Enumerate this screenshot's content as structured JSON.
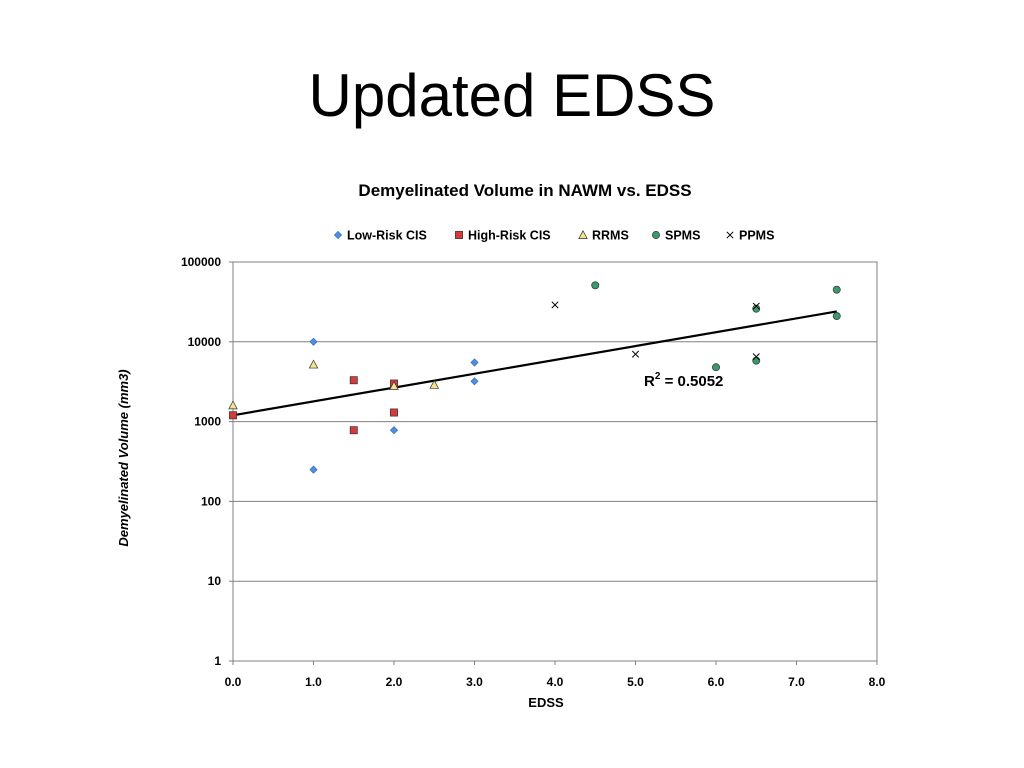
{
  "slide": {
    "title": "Updated EDSS"
  },
  "chart_data": {
    "type": "scatter",
    "title": "Demyelinated Volume in NAWM vs. EDSS",
    "xlabel": "EDSS",
    "ylabel": "Demyelinated Volume (mm3)",
    "xlim": [
      0,
      8
    ],
    "ylim": [
      1,
      100000
    ],
    "yscale": "log",
    "grid": "horizontal",
    "legend_position": "top",
    "x_ticks": [
      "0.0",
      "1.0",
      "2.0",
      "3.0",
      "4.0",
      "5.0",
      "6.0",
      "7.0",
      "8.0"
    ],
    "y_ticks": [
      "1",
      "10",
      "100",
      "1000",
      "10000",
      "100000"
    ],
    "series": [
      {
        "name": "Low-Risk CIS",
        "marker": "diamond",
        "color": "#4f8fe0",
        "points": [
          [
            1.0,
            250
          ],
          [
            1.0,
            10000
          ],
          [
            2.0,
            780
          ],
          [
            3.0,
            5500
          ],
          [
            3.0,
            3200
          ]
        ]
      },
      {
        "name": "High-Risk CIS",
        "marker": "square",
        "color": "#d63a3a",
        "points": [
          [
            0.0,
            1200
          ],
          [
            1.5,
            3300
          ],
          [
            1.5,
            780
          ],
          [
            2.0,
            3000
          ],
          [
            2.0,
            1300
          ]
        ]
      },
      {
        "name": "RRMS",
        "marker": "triangle",
        "color": "#f3e38a",
        "points": [
          [
            0.0,
            1600
          ],
          [
            1.0,
            5200
          ],
          [
            2.0,
            2800
          ],
          [
            2.5,
            2900
          ]
        ]
      },
      {
        "name": "SPMS",
        "marker": "circle",
        "color": "#3a9a6a",
        "points": [
          [
            4.5,
            51000
          ],
          [
            6.0,
            4800
          ],
          [
            6.5,
            26000
          ],
          [
            6.5,
            5800
          ],
          [
            7.5,
            45000
          ],
          [
            7.5,
            21000
          ]
        ]
      },
      {
        "name": "PPMS",
        "marker": "x",
        "color": "#000000",
        "points": [
          [
            4.0,
            29000
          ],
          [
            5.0,
            7000
          ],
          [
            6.5,
            28000
          ],
          [
            6.5,
            6500
          ]
        ]
      }
    ],
    "trendline": {
      "type": "exponential",
      "from": [
        0.0,
        1200
      ],
      "to": [
        7.5,
        24000
      ],
      "r_squared_label": "R",
      "r_squared_sup": "2",
      "r_squared_value": " = 0.5052"
    }
  }
}
